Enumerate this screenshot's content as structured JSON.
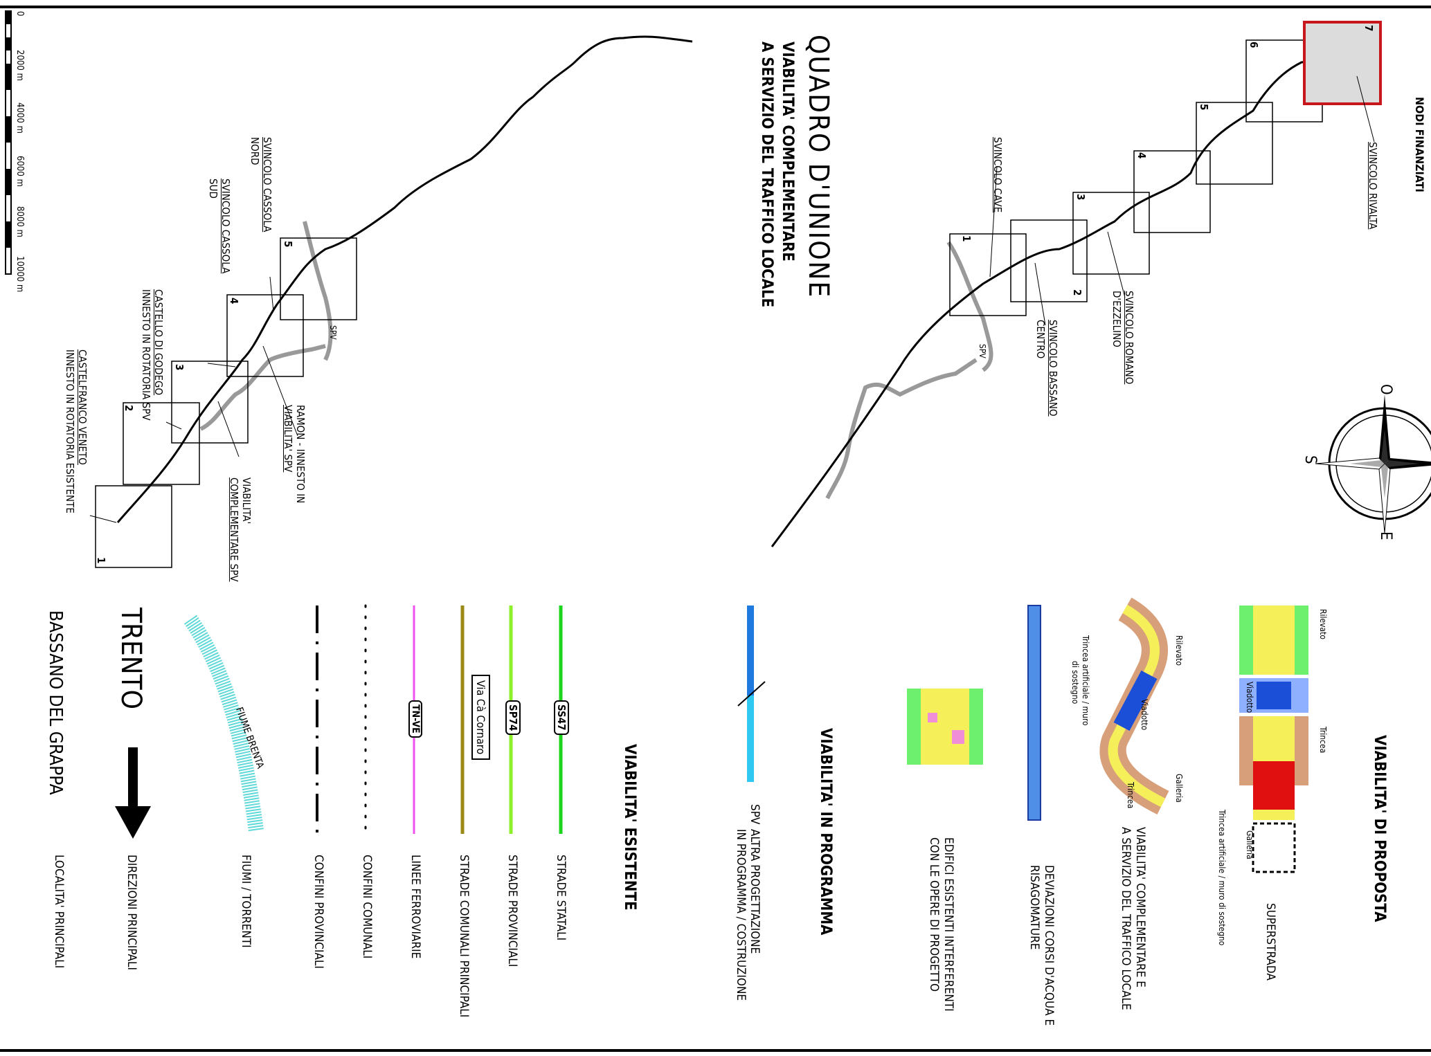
{
  "title": "QUADRO D'UNIONE",
  "subtitle_1": "VIABILITA' COMPLEMENTARE",
  "subtitle_2": "A SERVIZIO DEL TRAFFICO LOCALE",
  "corner_text": "NODI FINANZIATI",
  "scale_bar": [
    "0",
    "2000 m",
    "4000 m",
    "6000 m",
    "8000 m",
    "10000 m"
  ],
  "upper_map": {
    "frames": [
      "1",
      "2",
      "3",
      "4",
      "5",
      "6",
      "7"
    ],
    "labels": {
      "rivalta": "SVINCOLO RIVALTA",
      "cave": "SVINCOLO CAVE",
      "romano_1": "SVINCOLO ROMANO",
      "romano_2": "D'EZZELINO",
      "bassano_1": "SVINCOLO BASSANO",
      "bassano_2": "CENTRO",
      "spv": "SPV"
    }
  },
  "lower_map": {
    "frames": [
      "1",
      "2",
      "3",
      "4",
      "5"
    ],
    "labels": {
      "cassola_nord_1": "SVINCOLO CASSOLA",
      "cassola_nord_2": "NORD",
      "cassola_sud_1": "SVINCOLO CASSOLA",
      "cassola_sud_2": "SUD",
      "godego_1": "CASTELLO DI GODEGO",
      "godego_2": "INNESTO IN ROTATORIA SPV",
      "castelfranco_1": "CASTELFRANCO VENETO",
      "castelfranco_2": "INNESTO IN ROTATORIA ESISTENTE",
      "ramon_1": "RAMON - INNESTO IN",
      "ramon_2": "VIABILITA' SPV",
      "compl_1": "VIABILITA'",
      "compl_2": "COMPLEMENTARE SPV",
      "spv": "SPV"
    }
  },
  "compass": {
    "north": "O",
    "left": "S",
    "right": "E"
  },
  "legend": {
    "proposta": {
      "heading": "VIABILITA' DI PROPOSTA",
      "superstrada": "SUPERSTRADA",
      "rilevato": "Rilevato",
      "viadotto": "Viadotto",
      "trincea": "Trincea",
      "galleria": "Galleria",
      "trincea_muro": "Trincea artificiale / muro di sostegno",
      "complementare_1": "VIABILITA' COMPLEMENTARE E",
      "complementare_2": "A SERVIZIO DEL TRAFFICO LOCALE",
      "c_rilevato": "Rilevato",
      "c_viadotto": "Viadotto",
      "c_trincea": "Trincea",
      "c_galleria": "Galleria",
      "c_trincea_muro_1": "Trincea artificiale / muro",
      "c_trincea_muro_2": "di sostegno",
      "deviazioni_1": "DEVIAZIONI CORSI D'ACQUA E",
      "deviazioni_2": "RISAGOMATURE",
      "edifici_1": "EDIFICI ESISTENTI INTERFERENTI",
      "edifici_2": "CON LE OPERE DI PROGETTO"
    },
    "programma": {
      "heading": "VIABILITA' IN PROGRAMMA",
      "spv": "SPV",
      "altra_1": "ALTRA PROGETTAZIONE",
      "altra_2": "IN PROGRAMMA / COSTRUZIONE"
    },
    "esistente": {
      "heading": "VIABILITA' ESISTENTE",
      "items": [
        {
          "label": "STRADE STATALI",
          "tag": "SS47",
          "color": "#1bd41b"
        },
        {
          "label": "STRADE PROVINCIALI",
          "tag": "SP74",
          "color": "#8cf02a"
        },
        {
          "label": "STRADE COMUNALI PRINCIPALI",
          "tag": "Via Cà Cornaro",
          "color": "#9c8a18"
        },
        {
          "label": "LINEE FERROVIARIE",
          "tag": "TN-VE",
          "color": "#f050f0"
        },
        {
          "label": "CONFINI COMUNALI",
          "tag": "",
          "color": "#000000"
        },
        {
          "label": "CONFINI PROVINCIALI",
          "tag": "",
          "color": "#000000"
        },
        {
          "label": "FIUMI / TORRENTI",
          "tag": "FIUME BRENTA",
          "color": "#5fd8d8"
        },
        {
          "label": "DIREZIONI PRINCIPALI",
          "tag": "TRENTO",
          "color": "#000000"
        },
        {
          "label": "LOCALITA' PRINCIPALI",
          "tag": "BASSANO DEL GRAPPA",
          "color": "#000000"
        }
      ]
    }
  }
}
